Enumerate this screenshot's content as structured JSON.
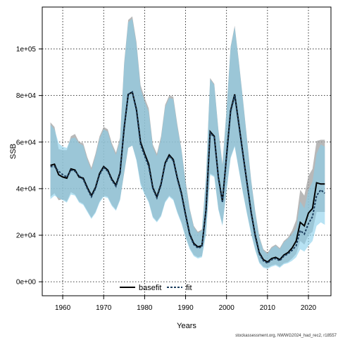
{
  "chart_data": {
    "type": "line",
    "xlabel": "Years",
    "ylabel": "SSB",
    "xlim": [
      1955,
      2025.5
    ],
    "ylim": [
      -6000,
      118000
    ],
    "x_ticks": [
      1960,
      1970,
      1980,
      1990,
      2000,
      2010,
      2020
    ],
    "y_ticks": [
      0,
      20000,
      40000,
      60000,
      80000,
      100000
    ],
    "y_tick_labels": [
      "0e+00",
      "2e+04",
      "4e+04",
      "6e+04",
      "8e+04",
      "1e+05"
    ],
    "grid": true,
    "legend_position": "bottom-center",
    "credit": "stockassessment.org, NWWG2024_had_rec2, r18557",
    "x": [
      1957,
      1958,
      1959,
      1960,
      1961,
      1962,
      1963,
      1964,
      1965,
      1966,
      1967,
      1968,
      1969,
      1970,
      1971,
      1972,
      1973,
      1974,
      1975,
      1976,
      1977,
      1978,
      1979,
      1980,
      1981,
      1982,
      1983,
      1984,
      1985,
      1986,
      1987,
      1988,
      1989,
      1990,
      1991,
      1992,
      1993,
      1994,
      1995,
      1996,
      1997,
      1998,
      1999,
      2000,
      2001,
      2002,
      2003,
      2004,
      2005,
      2006,
      2007,
      2008,
      2009,
      2010,
      2011,
      2012,
      2013,
      2014,
      2015,
      2016,
      2017,
      2018,
      2019,
      2020,
      2021,
      2022,
      2023,
      2024
    ],
    "series": [
      {
        "name": "basefit",
        "line_color": "#000000",
        "band_color": "#a0a0a0",
        "values": [
          50000,
          50500,
          46000,
          45000,
          44500,
          48500,
          48000,
          45000,
          44500,
          40500,
          37000,
          40500,
          46500,
          49500,
          48000,
          44000,
          41500,
          47000,
          66000,
          80500,
          81500,
          74000,
          60000,
          55000,
          50500,
          40500,
          36500,
          42000,
          51000,
          54500,
          52500,
          44500,
          38000,
          29000,
          20500,
          16500,
          15000,
          15500,
          31000,
          64500,
          62500,
          45000,
          34500,
          54000,
          73500,
          80500,
          68000,
          55000,
          42500,
          30000,
          20000,
          12500,
          9500,
          8500,
          10000,
          10500,
          9500,
          11500,
          12500,
          14500,
          17500,
          25500,
          24000,
          29500,
          31500,
          42500,
          42000,
          42000
        ],
        "upper": [
          68500,
          66500,
          57000,
          56500,
          56500,
          62500,
          63500,
          60000,
          59500,
          53500,
          49000,
          55000,
          62500,
          66500,
          65500,
          59500,
          55500,
          62000,
          94000,
          112500,
          114000,
          103000,
          84500,
          79000,
          74500,
          59000,
          55000,
          62500,
          76000,
          80000,
          79500,
          67500,
          57000,
          43500,
          31500,
          24000,
          21500,
          22500,
          45500,
          87500,
          85000,
          65500,
          50500,
          74000,
          101000,
          110000,
          95000,
          78500,
          61500,
          44000,
          30500,
          19500,
          14000,
          12500,
          15000,
          16000,
          14500,
          17500,
          19000,
          22000,
          26500,
          39500,
          37000,
          45500,
          48500,
          60500,
          61000,
          61000
        ],
        "lower": [
          36500,
          38000,
          35000,
          35500,
          34500,
          38500,
          37500,
          34500,
          33500,
          30500,
          27500,
          30000,
          34500,
          37000,
          36500,
          33000,
          31000,
          35500,
          46500,
          57500,
          58500,
          52500,
          42500,
          38000,
          34500,
          28000,
          26000,
          28500,
          34500,
          37000,
          35500,
          30000,
          25500,
          19500,
          14500,
          11500,
          10500,
          11000,
          21000,
          46500,
          45500,
          31500,
          24500,
          39500,
          53500,
          58500,
          48500,
          38500,
          29500,
          21000,
          14000,
          8500,
          6500,
          6000,
          7000,
          7500,
          6500,
          8000,
          8500,
          10000,
          12000,
          17500,
          16000,
          20000,
          21500,
          30000,
          30000,
          30000
        ]
      },
      {
        "name": "fit",
        "line_color": "#1f3f5f",
        "band_color": "#87ceeb",
        "values": [
          49500,
          49500,
          47500,
          46000,
          45000,
          48000,
          47500,
          45500,
          44000,
          40000,
          36500,
          40000,
          46000,
          49000,
          47500,
          43500,
          41000,
          46500,
          66500,
          80500,
          81500,
          73500,
          59000,
          54000,
          49500,
          40000,
          36000,
          41500,
          50500,
          54000,
          52000,
          44000,
          37500,
          28500,
          20000,
          16000,
          14500,
          15000,
          30500,
          64000,
          62000,
          44500,
          34000,
          53500,
          73000,
          80000,
          67500,
          54500,
          42000,
          29500,
          19500,
          12000,
          9000,
          8000,
          9500,
          10000,
          9000,
          11000,
          12000,
          13500,
          15500,
          22000,
          20500,
          25000,
          28000,
          37000,
          39500,
          38000
        ],
        "upper": [
          67500,
          65500,
          59500,
          58000,
          57500,
          61500,
          62000,
          59500,
          58500,
          52500,
          48000,
          54000,
          61500,
          65500,
          64500,
          58500,
          54500,
          61000,
          93000,
          111500,
          113000,
          102000,
          83000,
          77500,
          73000,
          58000,
          54000,
          61500,
          75000,
          79000,
          78500,
          66500,
          56500,
          42500,
          31000,
          23500,
          21000,
          22000,
          45000,
          87000,
          84500,
          65000,
          50000,
          73500,
          100500,
          109500,
          94500,
          78000,
          61000,
          43500,
          30000,
          19000,
          13500,
          12000,
          14500,
          15500,
          14000,
          17000,
          18500,
          20500,
          23000,
          34500,
          31500,
          39500,
          43000,
          55000,
          59000,
          58000
        ],
        "lower": [
          35500,
          37000,
          36000,
          35000,
          34000,
          37500,
          37000,
          34000,
          33000,
          30000,
          27000,
          29500,
          34000,
          36500,
          36000,
          32500,
          30500,
          35000,
          47000,
          57500,
          58500,
          52000,
          41500,
          37500,
          34000,
          27500,
          25500,
          28000,
          34000,
          36500,
          35000,
          29500,
          25000,
          19000,
          14000,
          11000,
          10000,
          10500,
          20500,
          46000,
          45000,
          31000,
          24000,
          39000,
          53000,
          58000,
          48000,
          38000,
          29000,
          20500,
          13500,
          8000,
          6000,
          5500,
          6500,
          7000,
          6000,
          7500,
          8000,
          9000,
          10500,
          14000,
          13000,
          15500,
          17500,
          24000,
          25500,
          24500
        ]
      }
    ]
  }
}
